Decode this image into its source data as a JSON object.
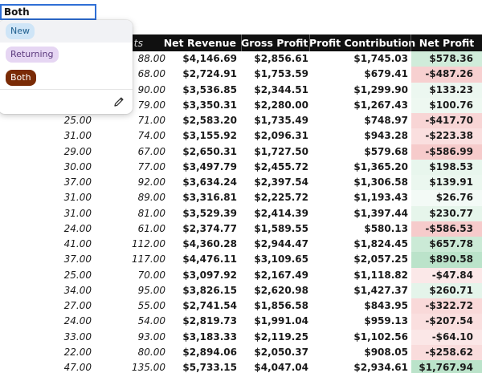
{
  "filter": {
    "value": "Both",
    "options": [
      {
        "label": "New",
        "bg": "#cfe5f7",
        "fg": "#1f5f8f"
      },
      {
        "label": "Returning",
        "bg": "#e6d6f3",
        "fg": "#5c3a7e"
      },
      {
        "label": "Both",
        "bg": "#7a2b06",
        "fg": "#ffffff"
      }
    ],
    "edit_icon": "pencil-icon"
  },
  "table": {
    "partial_header": "ts",
    "columns": [
      "Net Revenue",
      "Gross Profit",
      "Profit Contribution",
      "Net Profit"
    ],
    "rows": [
      [
        "",
        "88.00",
        "$4,146.69",
        "$2,856.61",
        "$1,745.03",
        "$578.36"
      ],
      [
        "",
        "68.00",
        "$2,724.91",
        "$1,753.59",
        "$679.41",
        "-$487.26"
      ],
      [
        "",
        "90.00",
        "$3,536.85",
        "$2,344.51",
        "$1,299.90",
        "$133.23"
      ],
      [
        "",
        "79.00",
        "$3,350.31",
        "$2,280.00",
        "$1,267.43",
        "$100.76"
      ],
      [
        "25.00",
        "71.00",
        "$2,583.20",
        "$1,735.49",
        "$748.97",
        "-$417.70"
      ],
      [
        "31.00",
        "74.00",
        "$3,155.92",
        "$2,096.31",
        "$943.28",
        "-$223.38"
      ],
      [
        "29.00",
        "67.00",
        "$2,650.31",
        "$1,727.50",
        "$579.68",
        "-$586.99"
      ],
      [
        "30.00",
        "77.00",
        "$3,497.79",
        "$2,455.72",
        "$1,365.20",
        "$198.53"
      ],
      [
        "37.00",
        "92.00",
        "$3,634.24",
        "$2,397.54",
        "$1,306.58",
        "$139.91"
      ],
      [
        "31.00",
        "89.00",
        "$3,316.81",
        "$2,225.72",
        "$1,193.43",
        "$26.76"
      ],
      [
        "31.00",
        "81.00",
        "$3,529.39",
        "$2,414.39",
        "$1,397.44",
        "$230.77"
      ],
      [
        "24.00",
        "61.00",
        "$2,374.77",
        "$1,589.55",
        "$580.13",
        "-$586.53"
      ],
      [
        "41.00",
        "112.00",
        "$4,360.28",
        "$2,944.47",
        "$1,824.45",
        "$657.78"
      ],
      [
        "37.00",
        "117.00",
        "$4,476.11",
        "$3,109.65",
        "$2,057.25",
        "$890.58"
      ],
      [
        "25.00",
        "70.00",
        "$3,097.92",
        "$2,167.49",
        "$1,118.82",
        "-$47.84"
      ],
      [
        "34.00",
        "95.00",
        "$3,826.15",
        "$2,620.98",
        "$1,427.37",
        "$260.71"
      ],
      [
        "27.00",
        "55.00",
        "$2,741.54",
        "$1,856.58",
        "$843.95",
        "-$322.72"
      ],
      [
        "24.00",
        "54.00",
        "$2,819.73",
        "$1,991.04",
        "$959.13",
        "-$207.54"
      ],
      [
        "33.00",
        "93.00",
        "$3,183.33",
        "$2,119.25",
        "$1,102.56",
        "-$64.10"
      ],
      [
        "22.00",
        "80.00",
        "$2,894.06",
        "$2,050.37",
        "$908.05",
        "-$258.62"
      ],
      [
        "47.00",
        "135.00",
        "$5,733.15",
        "$4,047.04",
        "$2,934.61",
        "$1,767.94"
      ]
    ],
    "net_profit_colors": {
      "positive": "#c9ead8",
      "negative": "#f3c4c4",
      "neutral": "#f4fbf7"
    }
  }
}
